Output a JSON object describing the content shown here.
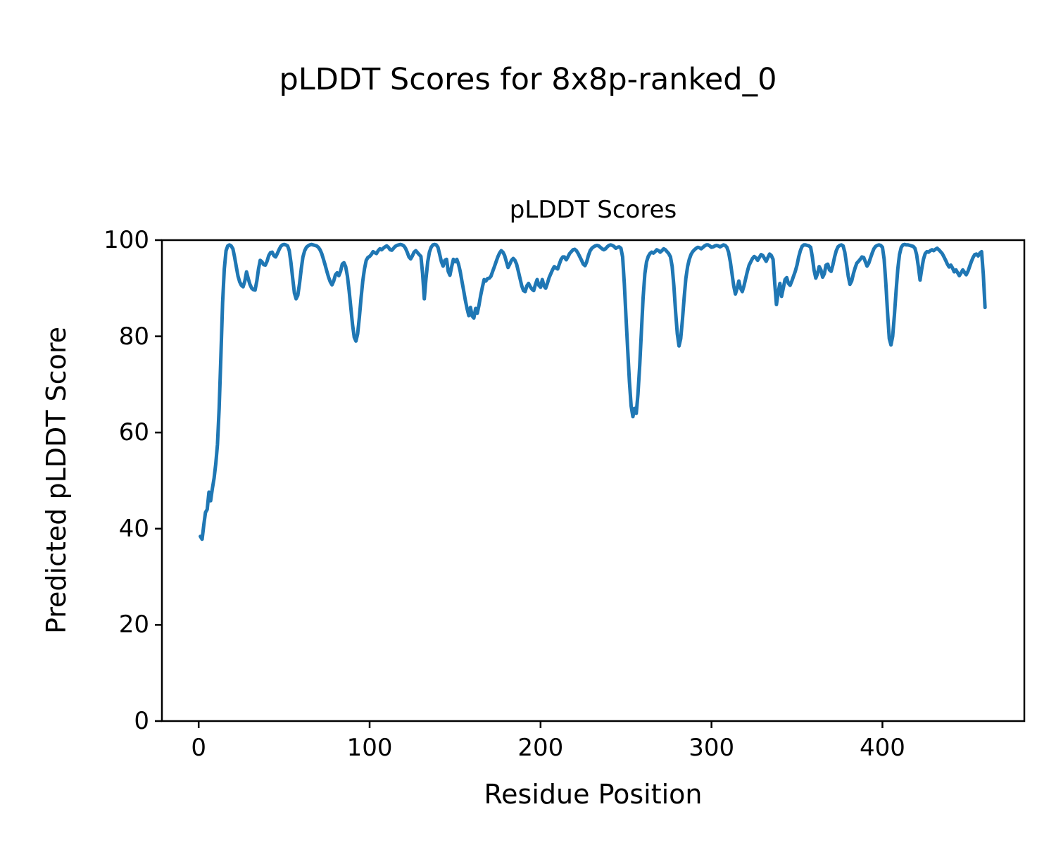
{
  "figure": {
    "suptitle": "pLDDT Scores for 8x8p-ranked_0"
  },
  "chart_data": {
    "type": "line",
    "title": "pLDDT Scores",
    "xlabel": "Residue Position",
    "ylabel": "Predicted pLDDT Score",
    "xlim": [
      -21.5,
      483
    ],
    "ylim": [
      0,
      100
    ],
    "xticks": [
      0,
      100,
      200,
      300,
      400
    ],
    "yticks": [
      0,
      20,
      40,
      60,
      80,
      100
    ],
    "grid": false,
    "legend": "none",
    "line_color": "#1f77b4",
    "axis_color": "#000000",
    "series": [
      {
        "name": "pLDDT",
        "x_start": 1,
        "x_step": 1,
        "y": [
          38.4,
          37.8,
          40.8,
          43.4,
          44.0,
          47.6,
          45.8,
          48.3,
          50.5,
          53.5,
          57.5,
          65.0,
          76.0,
          87.0,
          94.0,
          97.8,
          98.8,
          99.0,
          98.8,
          98.2,
          96.5,
          94.5,
          92.5,
          91.3,
          90.6,
          90.3,
          91.5,
          93.4,
          92.0,
          90.8,
          90.0,
          89.7,
          89.6,
          91.5,
          94.0,
          95.8,
          95.5,
          94.9,
          94.8,
          95.6,
          96.8,
          97.4,
          97.5,
          96.8,
          96.5,
          97.2,
          98.0,
          98.7,
          99.0,
          99.1,
          99.0,
          98.8,
          97.8,
          95.3,
          92.0,
          89.0,
          87.8,
          88.5,
          91.0,
          94.0,
          96.5,
          97.8,
          98.5,
          98.8,
          99.0,
          99.1,
          99.0,
          98.9,
          98.8,
          98.5,
          98.0,
          97.2,
          96.0,
          94.8,
          93.5,
          92.3,
          91.3,
          90.7,
          91.5,
          92.8,
          93.2,
          92.6,
          93.5,
          95.0,
          95.3,
          94.5,
          92.5,
          89.5,
          86.0,
          82.5,
          79.8,
          79.0,
          80.5,
          84.0,
          88.0,
          91.5,
          94.0,
          95.8,
          96.4,
          96.6,
          97.0,
          97.6,
          97.4,
          97.2,
          97.8,
          98.2,
          98.0,
          98.3,
          98.6,
          98.8,
          98.5,
          98.0,
          97.9,
          98.3,
          98.7,
          98.9,
          99.0,
          99.1,
          99.0,
          98.8,
          98.3,
          97.5,
          96.5,
          96.1,
          96.7,
          97.5,
          97.8,
          97.4,
          97.0,
          96.6,
          93.0,
          87.8,
          92.0,
          95.5,
          97.5,
          98.5,
          99.0,
          99.1,
          99.0,
          98.5,
          97.0,
          95.5,
          94.6,
          95.8,
          96.0,
          93.5,
          92.7,
          94.5,
          96.0,
          95.5,
          96.0,
          95.0,
          93.5,
          91.5,
          89.5,
          87.5,
          85.8,
          84.3,
          86.0,
          84.2,
          83.8,
          85.8,
          84.8,
          86.5,
          88.5,
          90.3,
          91.8,
          91.5,
          92.0,
          92.1,
          92.5,
          93.5,
          94.5,
          95.5,
          96.5,
          97.3,
          97.8,
          97.5,
          96.8,
          95.5,
          94.3,
          95.0,
          95.8,
          96.2,
          95.8,
          95.0,
          93.5,
          92.0,
          90.5,
          89.5,
          89.3,
          90.5,
          91.0,
          90.3,
          89.8,
          89.5,
          90.8,
          91.8,
          90.6,
          90.2,
          91.8,
          90.5,
          90.0,
          91.0,
          92.2,
          93.0,
          93.8,
          94.5,
          94.2,
          94.0,
          95.0,
          96.0,
          96.5,
          96.5,
          95.9,
          96.5,
          97.2,
          97.6,
          98.0,
          98.1,
          97.8,
          97.2,
          96.5,
          95.8,
          95.0,
          94.7,
          95.5,
          96.8,
          97.8,
          98.3,
          98.6,
          98.8,
          98.9,
          98.8,
          98.5,
          98.2,
          98.0,
          98.2,
          98.6,
          98.9,
          99.0,
          98.9,
          98.7,
          98.3,
          98.5,
          98.6,
          98.3,
          96.5,
          91.0,
          84.0,
          77.0,
          70.5,
          65.5,
          63.3,
          65.0,
          64.0,
          68.0,
          74.0,
          81.0,
          88.0,
          93.0,
          95.5,
          96.6,
          97.2,
          97.5,
          97.3,
          97.6,
          98.0,
          97.8,
          97.5,
          97.8,
          98.2,
          98.0,
          97.6,
          97.2,
          96.5,
          94.5,
          90.5,
          85.0,
          80.5,
          78.0,
          79.5,
          83.5,
          88.0,
          92.0,
          94.5,
          96.0,
          97.0,
          97.6,
          98.0,
          98.3,
          98.5,
          98.4,
          98.2,
          98.5,
          98.8,
          99.0,
          99.0,
          98.8,
          98.5,
          98.6,
          98.8,
          98.9,
          98.8,
          98.6,
          98.8,
          99.0,
          98.9,
          98.5,
          97.5,
          95.5,
          93.0,
          90.5,
          88.8,
          90.0,
          91.5,
          90.0,
          89.3,
          90.5,
          92.0,
          93.5,
          94.8,
          95.5,
          96.2,
          96.6,
          96.3,
          95.8,
          96.4,
          97.0,
          96.8,
          96.2,
          95.6,
          96.4,
          97.1,
          96.8,
          96.0,
          91.0,
          86.6,
          89.0,
          91.0,
          88.3,
          90.0,
          91.8,
          92.2,
          91.0,
          90.6,
          91.5,
          92.5,
          93.5,
          94.8,
          96.5,
          97.8,
          98.7,
          99.0,
          99.0,
          98.9,
          98.8,
          98.5,
          96.5,
          93.8,
          92.1,
          93.0,
          94.5,
          93.8,
          92.3,
          93.0,
          94.8,
          95.0,
          93.8,
          93.5,
          94.8,
          96.5,
          97.8,
          98.6,
          98.9,
          99.0,
          98.8,
          97.5,
          95.0,
          92.5,
          90.8,
          91.5,
          93.0,
          94.2,
          95.2,
          95.6,
          96.0,
          96.5,
          96.4,
          95.5,
          94.6,
          95.2,
          96.3,
          97.3,
          98.2,
          98.7,
          98.9,
          99.0,
          98.9,
          98.5,
          96.0,
          91.0,
          85.0,
          79.5,
          78.2,
          80.0,
          84.5,
          89.5,
          94.0,
          97.0,
          98.5,
          99.0,
          99.1,
          99.0,
          99.0,
          98.9,
          98.8,
          98.7,
          98.3,
          97.0,
          94.5,
          91.7,
          94.0,
          96.0,
          97.2,
          97.6,
          97.5,
          97.8,
          98.0,
          97.8,
          98.1,
          98.3,
          98.0,
          97.6,
          97.2,
          96.5,
          95.8,
          95.0,
          94.4,
          94.8,
          94.2,
          93.4,
          93.8,
          93.2,
          92.6,
          93.2,
          93.8,
          93.3,
          92.8,
          93.5,
          94.5,
          95.5,
          96.4,
          97.0,
          97.1,
          96.7,
          97.3,
          97.6,
          93.0,
          86.0
        ]
      }
    ]
  }
}
